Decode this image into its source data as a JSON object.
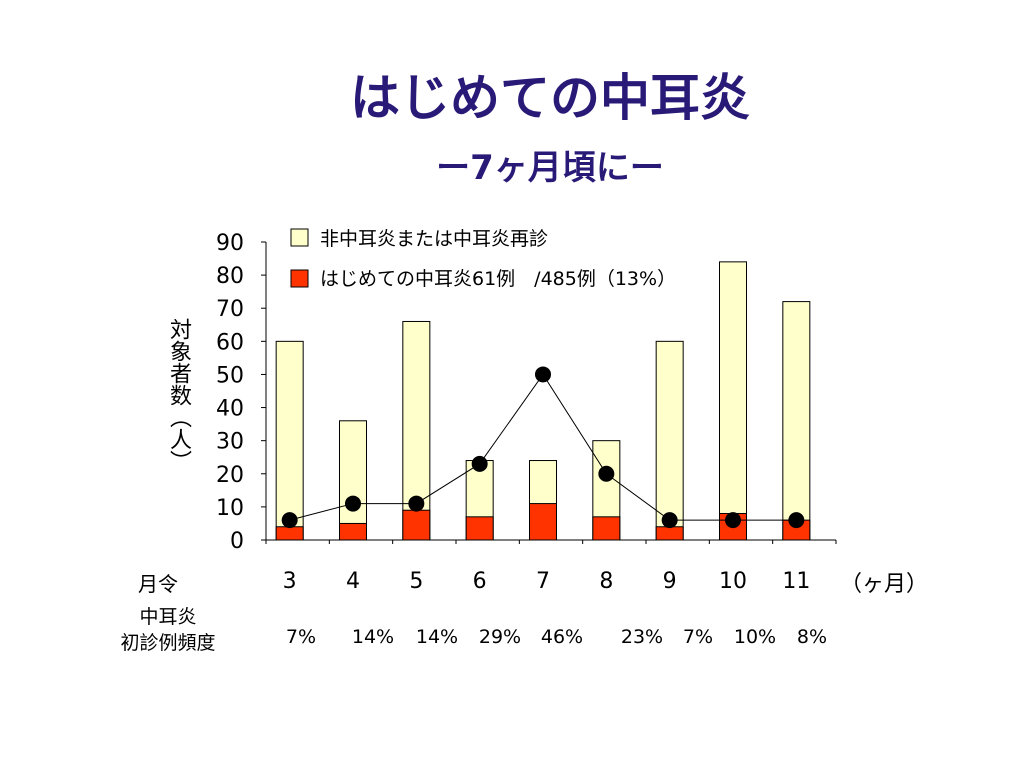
{
  "title": "はじめての中耳炎",
  "subtitle": "ー7ヶ月頃にー",
  "row_labels": {
    "month": "月令",
    "unit": "（ヶ月）",
    "freq_line1": "中耳炎",
    "freq_line2": "初診例頻度"
  },
  "colors": {
    "total_bar": "#ffffcc",
    "first_bar": "#ff3300",
    "line": "#000000",
    "title": "#2a1a78"
  },
  "chart_data": {
    "type": "bar",
    "categories": [
      "3",
      "4",
      "5",
      "6",
      "7",
      "8",
      "9",
      "10",
      "11"
    ],
    "ylabel": "対象者数（人）",
    "xlabel": "",
    "ylim": [
      0,
      90
    ],
    "yticks": [
      "0",
      "10",
      "20",
      "30",
      "40",
      "50",
      "60",
      "70",
      "80",
      "90"
    ],
    "series": [
      {
        "name": "非中耳炎または中耳炎再診",
        "values": [
          60,
          36,
          66,
          24,
          24,
          30,
          60,
          84,
          72
        ]
      },
      {
        "name": "はじめての中耳炎61例　/485例（13%）",
        "values": [
          4,
          5,
          9,
          7,
          11,
          7,
          4,
          8,
          6
        ]
      }
    ],
    "line_series": {
      "values": [
        6,
        11,
        11,
        23,
        50,
        20,
        6,
        6,
        6
      ]
    },
    "freq_labels": [
      "7%",
      "14%",
      "14%",
      "29%",
      "46%",
      "23%",
      "7%",
      "10%",
      "8%"
    ],
    "legend": "top"
  }
}
